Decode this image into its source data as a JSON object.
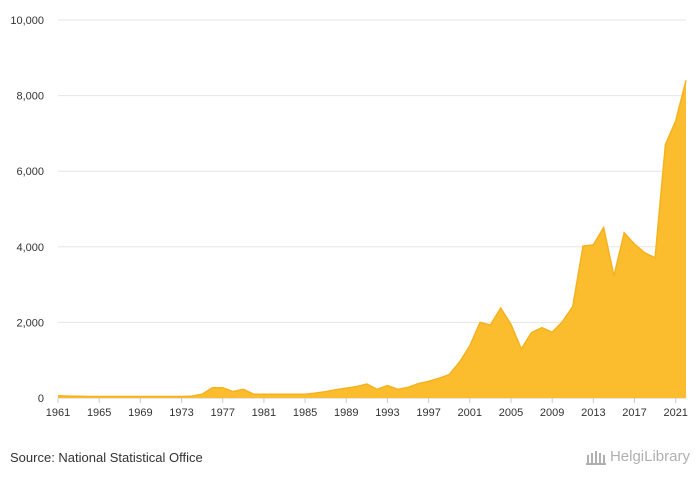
{
  "chart_data": {
    "type": "area",
    "title": "",
    "xlabel": "",
    "ylabel": "",
    "x": [
      1961,
      1962,
      1963,
      1964,
      1965,
      1966,
      1967,
      1968,
      1969,
      1970,
      1971,
      1972,
      1973,
      1974,
      1975,
      1976,
      1977,
      1978,
      1979,
      1980,
      1981,
      1982,
      1983,
      1984,
      1985,
      1986,
      1987,
      1988,
      1989,
      1990,
      1991,
      1992,
      1993,
      1994,
      1995,
      1996,
      1997,
      1998,
      1999,
      2000,
      2001,
      2002,
      2003,
      2004,
      2005,
      2006,
      2007,
      2008,
      2009,
      2010,
      2011,
      2012,
      2013,
      2014,
      2015,
      2016,
      2017,
      2018,
      2019,
      2020,
      2021,
      2022
    ],
    "values": [
      60,
      50,
      45,
      40,
      40,
      40,
      40,
      40,
      40,
      40,
      40,
      40,
      40,
      50,
      100,
      270,
      270,
      170,
      230,
      100,
      100,
      100,
      100,
      100,
      100,
      130,
      170,
      220,
      260,
      300,
      370,
      230,
      330,
      230,
      280,
      380,
      440,
      520,
      620,
      950,
      1380,
      2000,
      1930,
      2380,
      1950,
      1300,
      1730,
      1860,
      1740,
      2020,
      2420,
      4020,
      4050,
      4510,
      3230,
      4370,
      4070,
      3840,
      3710,
      6700,
      7330,
      8400
    ],
    "xticks": [
      "1961",
      "1965",
      "1969",
      "1973",
      "1977",
      "1981",
      "1985",
      "1989",
      "1993",
      "1997",
      "2001",
      "2005",
      "2009",
      "2013",
      "2017",
      "2021"
    ],
    "yticks": [
      "0",
      "2,000",
      "4,000",
      "6,000",
      "8,000",
      "10,000"
    ],
    "ylim": [
      0,
      10000
    ],
    "xlim": [
      1961,
      2022
    ],
    "grid": true,
    "legend": "none",
    "fill_color": "#FBBD2E",
    "line_color": "#F5B21F"
  },
  "footer": {
    "source": "Source: National Statistical Office",
    "logo_text": "HelgiLibrary"
  }
}
